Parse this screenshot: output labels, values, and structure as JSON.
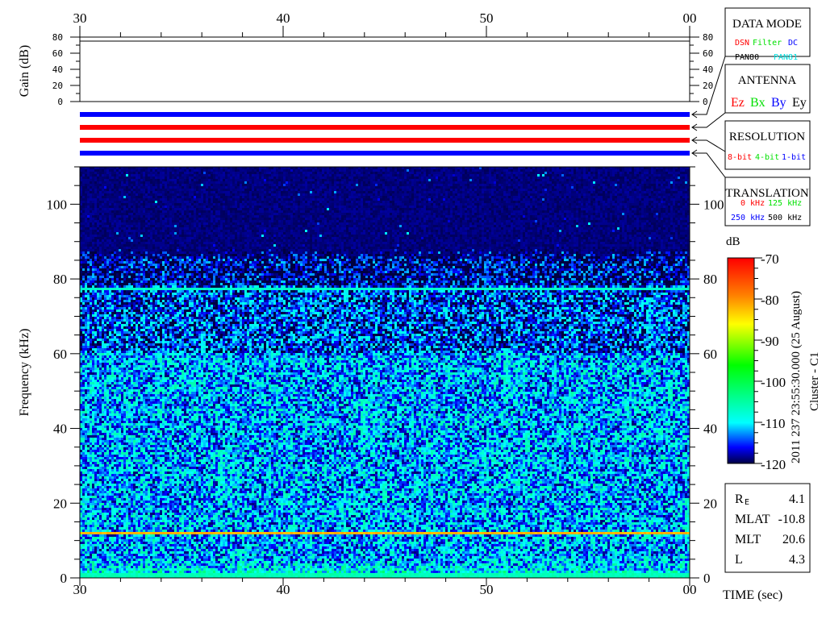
{
  "chart_data": {
    "type": "heatmap",
    "title": "",
    "side_label": "2011 237 23:55:30.000 (25 August)",
    "spacecraft_label": "Cluster - C1",
    "xlabel": "TIME (sec)",
    "x_ticks": [
      "30",
      "40",
      "50",
      "00"
    ],
    "xlim_sec": [
      30,
      60
    ],
    "ylabel": "Frequency (kHz)",
    "y_ticks": [
      "0",
      "20",
      "40",
      "60",
      "80",
      "100"
    ],
    "ylim_khz": [
      0,
      110
    ],
    "colorbar": {
      "label": "dB",
      "ticks": [
        "-70",
        "-80",
        "-90",
        "-100",
        "-110",
        "-120"
      ],
      "range_db": [
        -120,
        -70
      ],
      "colormap": [
        "#000040",
        "#0000ff",
        "#00ffff",
        "#00ff00",
        "#ffff00",
        "#ff8000",
        "#ff0000"
      ]
    },
    "spectrogram": {
      "noise_cutoff_khz": 85,
      "background_db": -112,
      "narrowband_lines": [
        {
          "freq_khz": 12,
          "level_db": -82
        },
        {
          "freq_khz": 77.5,
          "level_db": -107
        },
        {
          "freq_khz": 0.7,
          "level_db": -106
        }
      ]
    },
    "gain_panel": {
      "ylabel": "Gain (dB)",
      "y_ticks": [
        "0",
        "20",
        "40",
        "60",
        "80"
      ],
      "ylim_db": [
        0,
        80
      ],
      "gain_db": 75
    },
    "status_bars": [
      {
        "panel": "DATA MODE",
        "color": "#0000ff"
      },
      {
        "panel": "ANTENNA",
        "color": "#ff0000"
      },
      {
        "panel": "RESOLUTION",
        "color": "#ff0000"
      },
      {
        "panel": "TRANSLATION",
        "color": "#0000ff"
      }
    ]
  },
  "legend_boxes": {
    "data_mode": {
      "title": "DATA MODE",
      "items": [
        {
          "label": "DSN",
          "color": "#ff0000"
        },
        {
          "label": "Filter",
          "color": "#00e000"
        },
        {
          "label": "DC",
          "color": "#0000ff"
        },
        {
          "label": "PAN80",
          "color": "#000000"
        },
        {
          "label": "PAN81",
          "color": "#00e0e0"
        }
      ]
    },
    "antenna": {
      "title": "ANTENNA",
      "items": [
        {
          "label": "Ez",
          "color": "#ff0000"
        },
        {
          "label": "Bx",
          "color": "#00e000"
        },
        {
          "label": "By",
          "color": "#0000ff"
        },
        {
          "label": "Ey",
          "color": "#000000"
        }
      ]
    },
    "resolution": {
      "title": "RESOLUTION",
      "items": [
        {
          "label": "8-bit",
          "color": "#ff0000"
        },
        {
          "label": "4-bit",
          "color": "#00e000"
        },
        {
          "label": "1-bit",
          "color": "#0000ff"
        }
      ]
    },
    "translation": {
      "title": "TRANSLATION",
      "items": [
        {
          "label": "0 kHz",
          "color": "#ff0000"
        },
        {
          "label": "125 kHz",
          "color": "#00e000"
        },
        {
          "label": "250 kHz",
          "color": "#0000ff"
        },
        {
          "label": "500 kHz",
          "color": "#000000"
        }
      ]
    }
  },
  "orbit_info": [
    {
      "label": "R",
      "sub": "E",
      "value": "4.1"
    },
    {
      "label": "MLAT",
      "sub": "",
      "value": "-10.8"
    },
    {
      "label": "MLT",
      "sub": "",
      "value": "20.6"
    },
    {
      "label": "L",
      "sub": "",
      "value": "4.3"
    }
  ]
}
